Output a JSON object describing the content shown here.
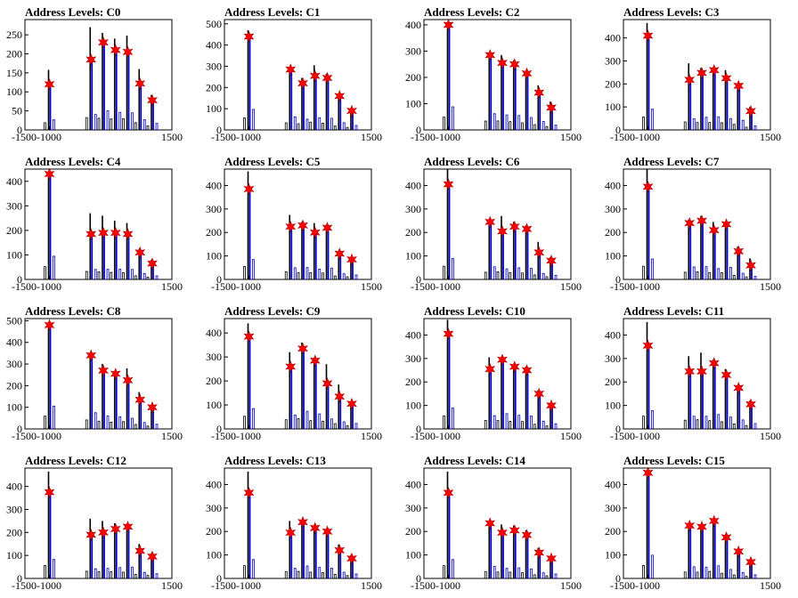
{
  "figure": {
    "title_prefix": "Address Levels: "
  },
  "colors": {
    "histogram_a": "#000000",
    "histogram_b": "#0000cc",
    "marker": "#ff0000",
    "axis": "#000000"
  },
  "chart_data": [
    {
      "id": "C0",
      "title": "Address Levels: C0",
      "type": "bar",
      "xlim": [
        -1500,
        1500
      ],
      "ylim": [
        0,
        290
      ],
      "yticks": [
        0,
        50,
        100,
        150,
        200,
        250
      ],
      "xticks": [
        -1500,
        -1000,
        1500
      ],
      "peaks_x": [
        -1000,
        -150,
        100,
        350,
        600,
        850,
        1100
      ],
      "peaks_y": [
        120,
        185,
        230,
        210,
        205,
        122,
        78
      ],
      "black_heights": [
        158,
        270,
        255,
        240,
        248,
        160,
        92
      ],
      "blue_heights": [
        120,
        185,
        230,
        210,
        205,
        122,
        78
      ]
    },
    {
      "id": "C1",
      "title": "Address Levels: C1",
      "type": "bar",
      "xlim": [
        -1500,
        1500
      ],
      "ylim": [
        0,
        520
      ],
      "yticks": [
        0,
        100,
        200,
        300,
        400,
        500
      ],
      "xticks": [
        -1500,
        -1000,
        1500
      ],
      "peaks_x": [
        -1000,
        -150,
        100,
        350,
        600,
        850,
        1100
      ],
      "peaks_y": [
        440,
        285,
        220,
        255,
        245,
        160,
        90
      ],
      "black_heights": [
        470,
        280,
        245,
        305,
        265,
        150,
        100
      ],
      "blue_heights": [
        440,
        280,
        230,
        260,
        250,
        155,
        95
      ]
    },
    {
      "id": "C2",
      "title": "Address Levels: C2",
      "type": "bar",
      "xlim": [
        -1500,
        1500
      ],
      "ylim": [
        0,
        420
      ],
      "yticks": [
        0,
        100,
        200,
        300,
        400
      ],
      "xticks": [
        -1500,
        -1000,
        1500
      ],
      "peaks_x": [
        -1000,
        -150,
        100,
        350,
        600,
        850,
        1100
      ],
      "peaks_y": [
        400,
        285,
        255,
        250,
        215,
        142,
        85
      ],
      "black_heights": [
        410,
        280,
        285,
        265,
        225,
        170,
        108
      ],
      "blue_heights": [
        400,
        280,
        260,
        250,
        215,
        145,
        85
      ]
    },
    {
      "id": "C3",
      "title": "Address Levels: C3",
      "type": "bar",
      "xlim": [
        -1500,
        1500
      ],
      "ylim": [
        0,
        480
      ],
      "yticks": [
        0,
        100,
        200,
        300,
        400
      ],
      "xticks": [
        -1500,
        -1000,
        1500
      ],
      "peaks_x": [
        -1000,
        -150,
        100,
        350,
        600,
        850,
        1100
      ],
      "peaks_y": [
        410,
        218,
        248,
        260,
        225,
        192,
        82
      ],
      "black_heights": [
        465,
        290,
        270,
        270,
        260,
        200,
        100
      ],
      "blue_heights": [
        410,
        220,
        250,
        260,
        225,
        190,
        80
      ]
    },
    {
      "id": "C4",
      "title": "Address Levels: C4",
      "type": "bar",
      "xlim": [
        -1500,
        1500
      ],
      "ylim": [
        0,
        450
      ],
      "yticks": [
        0,
        100,
        200,
        300,
        400
      ],
      "xticks": [
        -1500,
        -1000,
        1500
      ],
      "peaks_x": [
        -1000,
        -150,
        100,
        350,
        600,
        850,
        1100
      ],
      "peaks_y": [
        430,
        185,
        190,
        190,
        185,
        110,
        65
      ],
      "black_heights": [
        435,
        270,
        260,
        240,
        230,
        125,
        80
      ],
      "blue_heights": [
        430,
        185,
        190,
        190,
        185,
        110,
        65
      ]
    },
    {
      "id": "C5",
      "title": "Address Levels: C5",
      "type": "bar",
      "xlim": [
        -1500,
        1500
      ],
      "ylim": [
        0,
        470
      ],
      "yticks": [
        0,
        100,
        200,
        300,
        400
      ],
      "xticks": [
        -1500,
        -1000,
        1500
      ],
      "peaks_x": [
        -1000,
        -150,
        100,
        350,
        600,
        850,
        1100
      ],
      "peaks_y": [
        385,
        225,
        230,
        200,
        220,
        110,
        85
      ],
      "black_heights": [
        460,
        275,
        245,
        240,
        230,
        120,
        95
      ],
      "blue_heights": [
        385,
        225,
        230,
        200,
        220,
        110,
        85
      ]
    },
    {
      "id": "C6",
      "title": "Address Levels: C6",
      "type": "bar",
      "xlim": [
        -1500,
        1500
      ],
      "ylim": [
        0,
        470
      ],
      "yticks": [
        0,
        100,
        200,
        300,
        400
      ],
      "xticks": [
        -1500,
        -1000,
        1500
      ],
      "peaks_x": [
        -1000,
        -150,
        100,
        350,
        600,
        850,
        1100
      ],
      "peaks_y": [
        405,
        245,
        205,
        225,
        215,
        115,
        80
      ],
      "black_heights": [
        470,
        255,
        270,
        245,
        230,
        160,
        95
      ],
      "blue_heights": [
        405,
        245,
        205,
        225,
        215,
        115,
        80
      ]
    },
    {
      "id": "C7",
      "title": "Address Levels: C7",
      "type": "bar",
      "xlim": [
        -1500,
        1500
      ],
      "ylim": [
        0,
        470
      ],
      "yticks": [
        0,
        100,
        200,
        300,
        400
      ],
      "xticks": [
        -1500,
        -1000,
        1500
      ],
      "peaks_x": [
        -1000,
        -150,
        100,
        350,
        600,
        850,
        1100
      ],
      "peaks_y": [
        395,
        240,
        250,
        210,
        235,
        120,
        60
      ],
      "black_heights": [
        470,
        255,
        270,
        245,
        240,
        140,
        90
      ],
      "blue_heights": [
        395,
        240,
        250,
        210,
        235,
        120,
        60
      ]
    },
    {
      "id": "C8",
      "title": "Address Levels: C8",
      "type": "bar",
      "xlim": [
        -1500,
        1500
      ],
      "ylim": [
        0,
        510
      ],
      "yticks": [
        0,
        100,
        200,
        300,
        400,
        500
      ],
      "xticks": [
        -1500,
        -1000,
        1500
      ],
      "peaks_x": [
        -1000,
        -150,
        100,
        350,
        600,
        850,
        1100
      ],
      "peaks_y": [
        480,
        340,
        270,
        255,
        225,
        135,
        100
      ],
      "black_heights": [
        490,
        345,
        300,
        260,
        280,
        170,
        110
      ],
      "blue_heights": [
        480,
        340,
        270,
        255,
        225,
        135,
        100
      ]
    },
    {
      "id": "C9",
      "title": "Address Levels: C9",
      "type": "bar",
      "xlim": [
        -1500,
        1500
      ],
      "ylim": [
        0,
        460
      ],
      "yticks": [
        0,
        100,
        200,
        300,
        400
      ],
      "xticks": [
        -1500,
        -1000,
        1500
      ],
      "peaks_x": [
        -1000,
        -150,
        100,
        350,
        600,
        850,
        1100
      ],
      "peaks_y": [
        385,
        260,
        335,
        285,
        190,
        135,
        105
      ],
      "black_heights": [
        440,
        320,
        360,
        290,
        270,
        185,
        115
      ],
      "blue_heights": [
        385,
        260,
        335,
        285,
        190,
        135,
        105
      ]
    },
    {
      "id": "C10",
      "title": "Address Levels: C10",
      "type": "bar",
      "xlim": [
        -1500,
        1500
      ],
      "ylim": [
        0,
        470
      ],
      "yticks": [
        0,
        100,
        200,
        300,
        400
      ],
      "xticks": [
        -1500,
        -1000,
        1500
      ],
      "peaks_x": [
        -1000,
        -150,
        100,
        350,
        600,
        850,
        1100
      ],
      "peaks_y": [
        405,
        255,
        295,
        265,
        250,
        150,
        100
      ],
      "black_heights": [
        465,
        305,
        300,
        270,
        265,
        165,
        110
      ],
      "blue_heights": [
        405,
        255,
        295,
        265,
        250,
        150,
        100
      ]
    },
    {
      "id": "C11",
      "title": "Address Levels: C11",
      "type": "bar",
      "xlim": [
        -1500,
        1500
      ],
      "ylim": [
        0,
        470
      ],
      "yticks": [
        0,
        100,
        200,
        300,
        400
      ],
      "xticks": [
        -1500,
        -1000,
        1500
      ],
      "peaks_x": [
        -1000,
        -150,
        100,
        350,
        600,
        850,
        1100
      ],
      "peaks_y": [
        355,
        245,
        245,
        280,
        230,
        175,
        105
      ],
      "black_heights": [
        455,
        310,
        325,
        295,
        255,
        180,
        120
      ],
      "blue_heights": [
        355,
        245,
        245,
        280,
        230,
        175,
        105
      ]
    },
    {
      "id": "C12",
      "title": "Address Levels: C12",
      "type": "bar",
      "xlim": [
        -1500,
        1500
      ],
      "ylim": [
        0,
        480
      ],
      "yticks": [
        0,
        100,
        200,
        300,
        400
      ],
      "xticks": [
        -1500,
        -1000,
        1500
      ],
      "peaks_x": [
        -1000,
        -150,
        100,
        350,
        600,
        850,
        1100
      ],
      "peaks_y": [
        375,
        190,
        200,
        215,
        225,
        120,
        95
      ],
      "black_heights": [
        465,
        260,
        250,
        240,
        230,
        150,
        110
      ],
      "blue_heights": [
        375,
        190,
        200,
        215,
        225,
        120,
        95
      ]
    },
    {
      "id": "C13",
      "title": "Address Levels: C13",
      "type": "bar",
      "xlim": [
        -1500,
        1500
      ],
      "ylim": [
        0,
        470
      ],
      "yticks": [
        0,
        100,
        200,
        300,
        400
      ],
      "xticks": [
        -1500,
        -1000,
        1500
      ],
      "peaks_x": [
        -1000,
        -150,
        100,
        350,
        600,
        850,
        1100
      ],
      "peaks_y": [
        365,
        195,
        240,
        215,
        200,
        120,
        85
      ],
      "black_heights": [
        455,
        245,
        250,
        225,
        210,
        145,
        100
      ],
      "blue_heights": [
        365,
        195,
        240,
        215,
        200,
        120,
        85
      ]
    },
    {
      "id": "C14",
      "title": "Address Levels: C14",
      "type": "bar",
      "xlim": [
        -1500,
        1500
      ],
      "ylim": [
        0,
        470
      ],
      "yticks": [
        0,
        100,
        200,
        300,
        400
      ],
      "xticks": [
        -1500,
        -1000,
        1500
      ],
      "peaks_x": [
        -1000,
        -150,
        100,
        350,
        600,
        850,
        1100
      ],
      "peaks_y": [
        365,
        235,
        195,
        205,
        185,
        110,
        85
      ],
      "black_heights": [
        455,
        245,
        230,
        225,
        205,
        130,
        95
      ],
      "blue_heights": [
        365,
        235,
        195,
        205,
        185,
        110,
        85
      ]
    },
    {
      "id": "C15",
      "title": "Address Levels: C15",
      "type": "bar",
      "xlim": [
        -1500,
        1500
      ],
      "ylim": [
        0,
        470
      ],
      "yticks": [
        0,
        100,
        200,
        300,
        400
      ],
      "xticks": [
        -1500,
        -1000,
        1500
      ],
      "peaks_x": [
        -1000,
        -150,
        100,
        350,
        600,
        850,
        1100
      ],
      "peaks_y": [
        450,
        225,
        220,
        245,
        175,
        115,
        70
      ],
      "black_heights": [
        460,
        230,
        225,
        250,
        185,
        120,
        80
      ],
      "blue_heights": [
        450,
        225,
        220,
        245,
        175,
        115,
        70
      ]
    }
  ]
}
